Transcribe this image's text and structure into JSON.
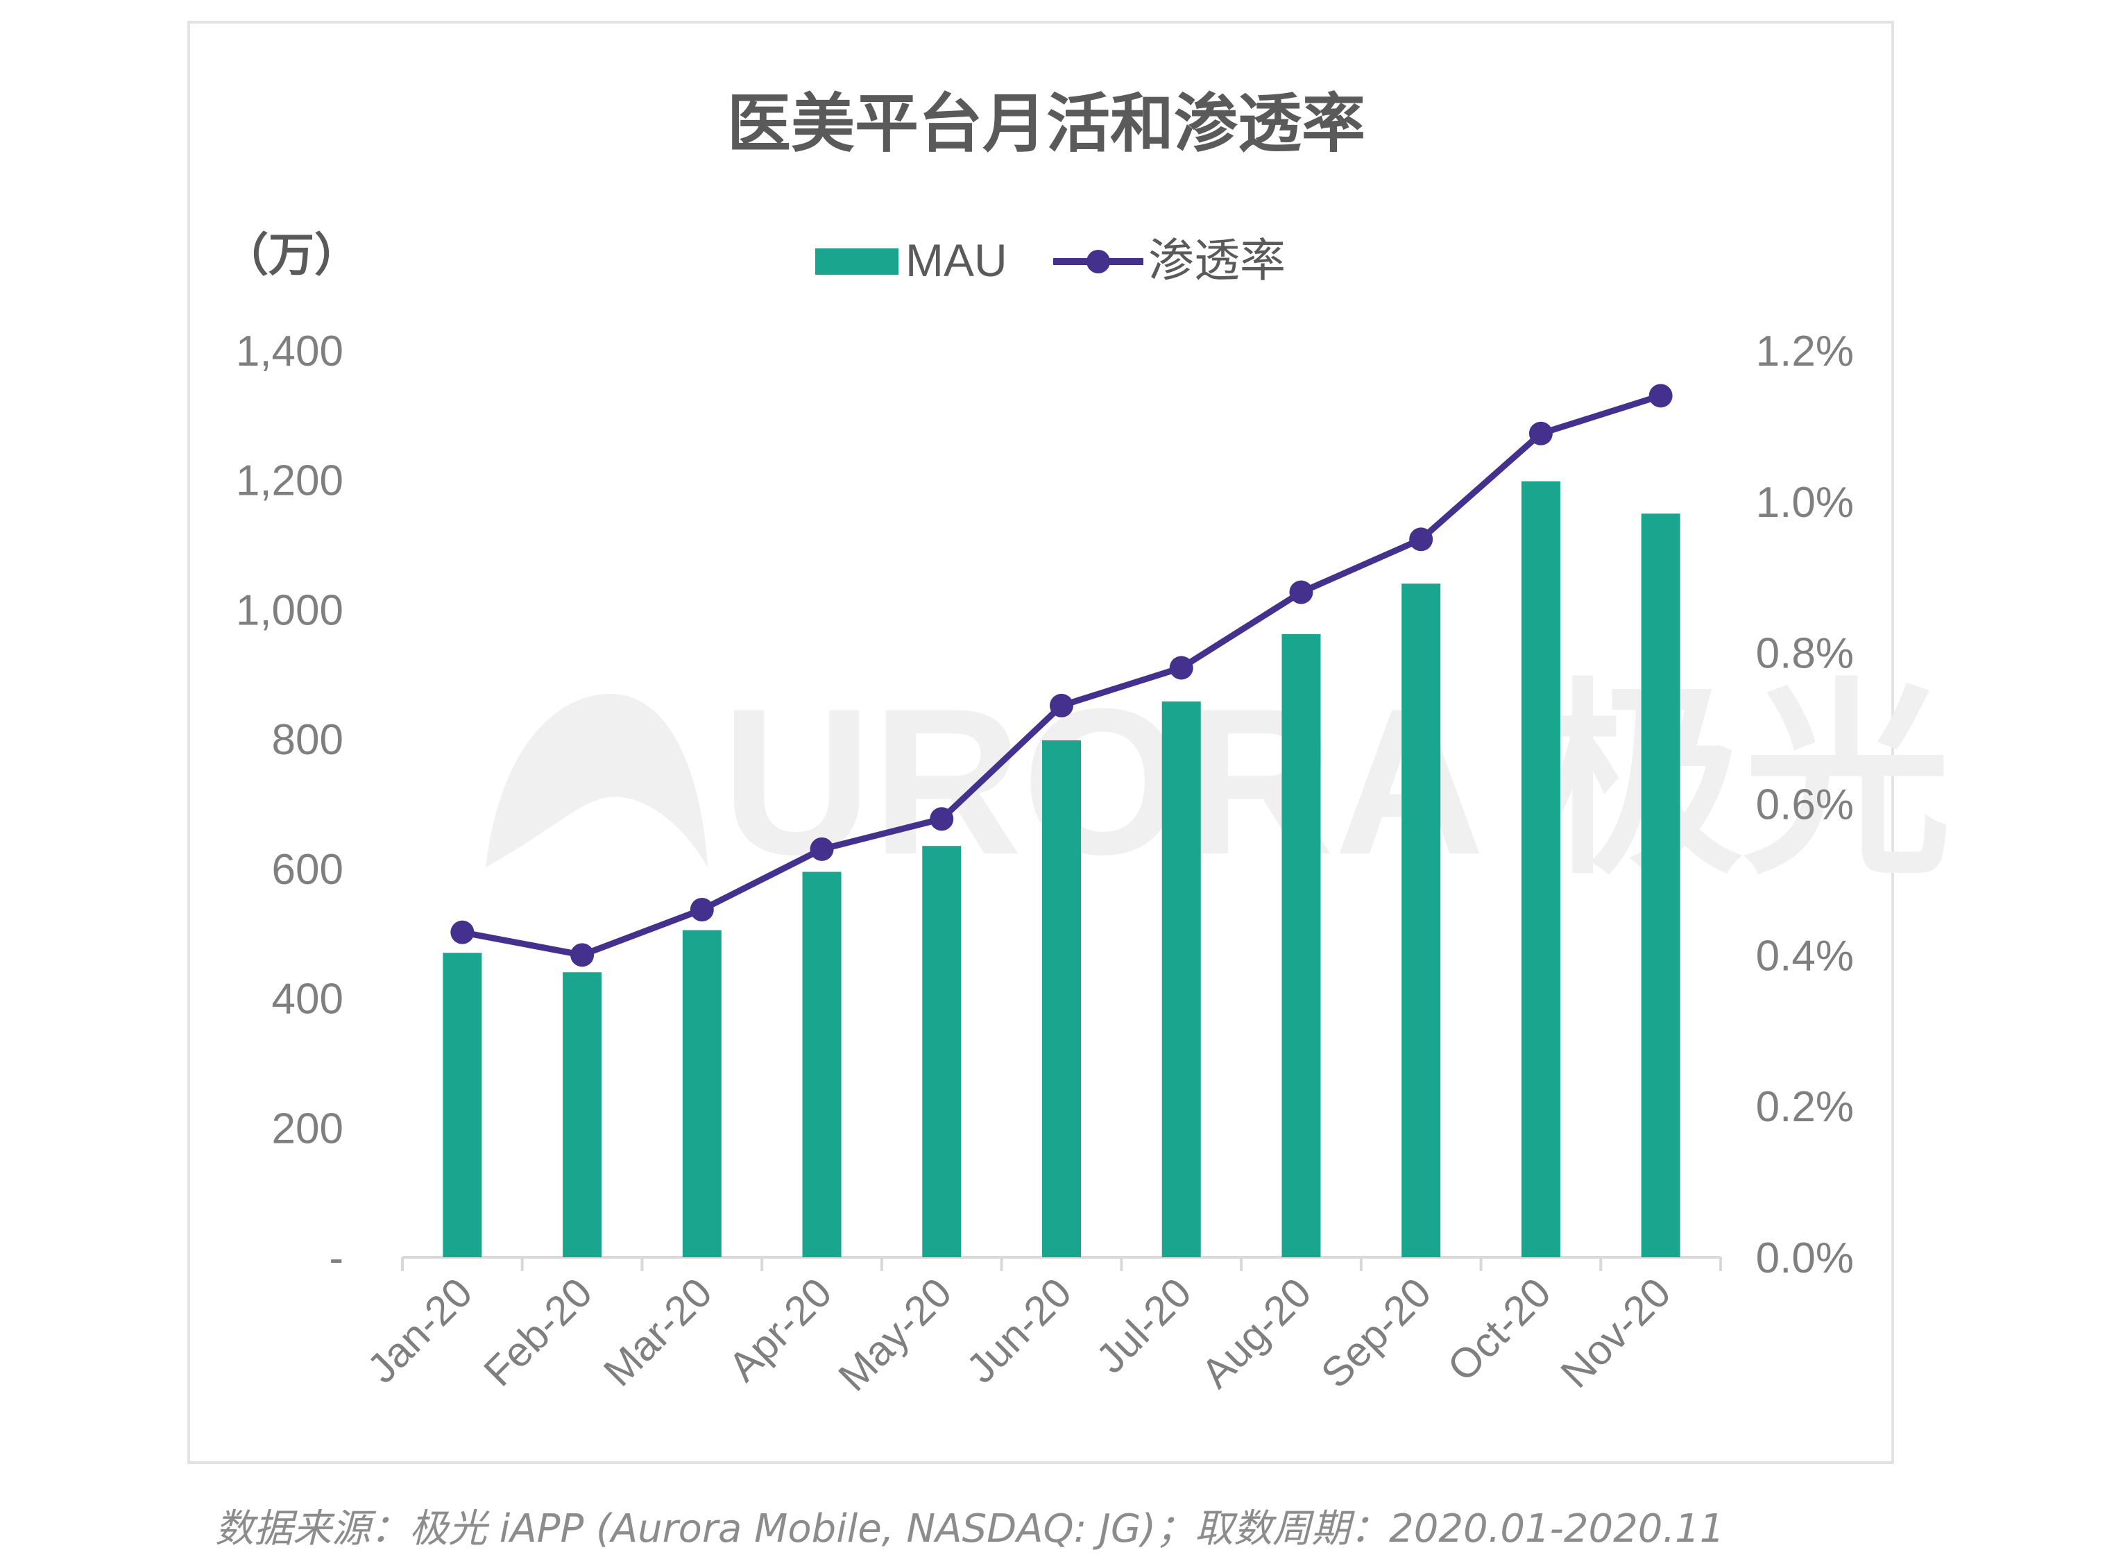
{
  "chart_data": {
    "type": "bar",
    "title": "医美平台月活和渗透率",
    "y_unit_label": "（万）",
    "categories": [
      "Jan-20",
      "Feb-20",
      "Mar-20",
      "Apr-20",
      "May-20",
      "Jun-20",
      "Jul-20",
      "Aug-20",
      "Sep-20",
      "Oct-20",
      "Nov-20"
    ],
    "series": [
      {
        "name": "MAU",
        "type": "bar",
        "axis": "left",
        "color": "#1aa58f",
        "values": [
          470,
          440,
          505,
          595,
          635,
          798,
          858,
          962,
          1040,
          1198,
          1148
        ]
      },
      {
        "name": "渗透率",
        "type": "line",
        "axis": "right",
        "color": "#44318e",
        "values": [
          0.43,
          0.4,
          0.46,
          0.54,
          0.58,
          0.73,
          0.78,
          0.88,
          0.95,
          1.09,
          1.14
        ]
      }
    ],
    "left_axis": {
      "min": 0,
      "max": 1400,
      "ticks": [
        0,
        200,
        400,
        600,
        800,
        1000,
        1200,
        1400
      ],
      "tick_labels": [
        "-",
        "200",
        "400",
        "600",
        "800",
        "1,000",
        "1,200",
        "1,400"
      ]
    },
    "right_axis": {
      "min": 0,
      "max": 1.2,
      "ticks": [
        0,
        0.2,
        0.4,
        0.6,
        0.8,
        1.0,
        1.2
      ],
      "tick_labels": [
        "0.0%",
        "0.2%",
        "0.4%",
        "0.6%",
        "0.8%",
        "1.0%",
        "1.2%"
      ]
    },
    "grid": false,
    "legend_position": "top-center"
  },
  "watermark": "URORA 极光",
  "source": "数据来源：极光 iAPP (Aurora Mobile, NASDAQ: JG)；取数周期：2020.01-2020.11"
}
